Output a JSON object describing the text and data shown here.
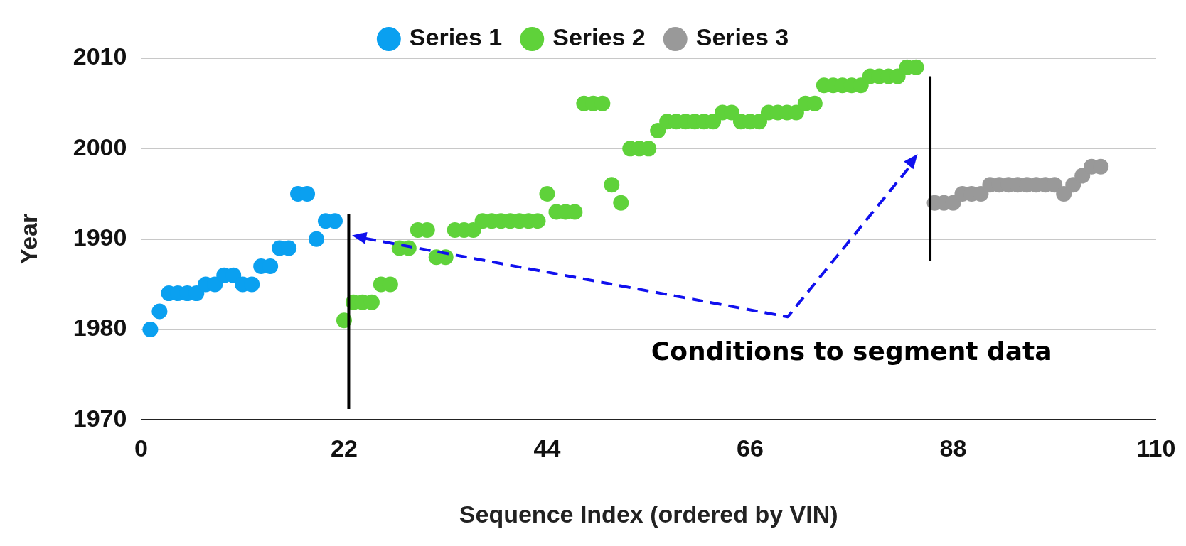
{
  "chart_data": {
    "type": "scatter",
    "xlabel": "Sequence Index (ordered by VIN)",
    "ylabel": "Year",
    "xlim": [
      0,
      110
    ],
    "xticks": [
      0,
      22,
      44,
      66,
      88,
      110
    ],
    "ylim": [
      1970,
      2010
    ],
    "yticks": [
      1970,
      1980,
      1990,
      2000,
      2010
    ],
    "grid": "y",
    "legend": "top",
    "marker": "circle",
    "series": [
      {
        "name": "Series 1",
        "color": "#0aa0f0",
        "x": [
          1,
          2,
          3,
          4,
          5,
          6,
          7,
          8,
          9,
          10,
          11,
          12,
          13,
          14,
          15,
          16,
          17,
          18,
          19,
          20,
          21
        ],
        "values": [
          1980,
          1982,
          1984,
          1984,
          1984,
          1984,
          1985,
          1985,
          1986,
          1986,
          1985,
          1985,
          1987,
          1987,
          1989,
          1989,
          1995,
          1995,
          1990,
          1992,
          1992
        ]
      },
      {
        "name": "Series 2",
        "color": "#5fd23a",
        "x": [
          22,
          23,
          24,
          25,
          26,
          27,
          28,
          29,
          30,
          31,
          32,
          33,
          34,
          35,
          36,
          37,
          38,
          39,
          40,
          41,
          42,
          43,
          44,
          45,
          46,
          47,
          48,
          49,
          50,
          51,
          52,
          53,
          54,
          55,
          56,
          57,
          58,
          59,
          60,
          61,
          62,
          63,
          64,
          65,
          66,
          67,
          68,
          69,
          70,
          71,
          72,
          73,
          74,
          75,
          76,
          77,
          78,
          79,
          80,
          81,
          82,
          83,
          84
        ],
        "values": [
          1981,
          1983,
          1983,
          1983,
          1985,
          1985,
          1989,
          1989,
          1991,
          1991,
          1988,
          1988,
          1991,
          1991,
          1991,
          1992,
          1992,
          1992,
          1992,
          1992,
          1992,
          1992,
          1995,
          1993,
          1993,
          1993,
          2005,
          2005,
          2005,
          1996,
          1994,
          2000,
          2000,
          2000,
          2002,
          2003,
          2003,
          2003,
          2003,
          2003,
          2003,
          2004,
          2004,
          2003,
          2003,
          2003,
          2004,
          2004,
          2004,
          2004,
          2005,
          2005,
          2007,
          2007,
          2007,
          2007,
          2007,
          2008,
          2008,
          2008,
          2008,
          2009,
          2009
        ]
      },
      {
        "name": "Series 3",
        "color": "#999999",
        "x": [
          86,
          87,
          88,
          89,
          90,
          91,
          92,
          93,
          94,
          95,
          96,
          97,
          98,
          99,
          100,
          101,
          102,
          103,
          104
        ],
        "values": [
          1994,
          1994,
          1994,
          1995,
          1995,
          1995,
          1996,
          1996,
          1996,
          1996,
          1996,
          1996,
          1996,
          1996,
          1995,
          1996,
          1997,
          1998,
          1998
        ]
      }
    ],
    "ref_lines": [
      {
        "axis": "x",
        "value": 22.5,
        "color": "#000000"
      },
      {
        "axis": "x",
        "value": 85.5,
        "color": "#000000"
      }
    ],
    "annotations": [
      "Conditions to segment data"
    ]
  }
}
